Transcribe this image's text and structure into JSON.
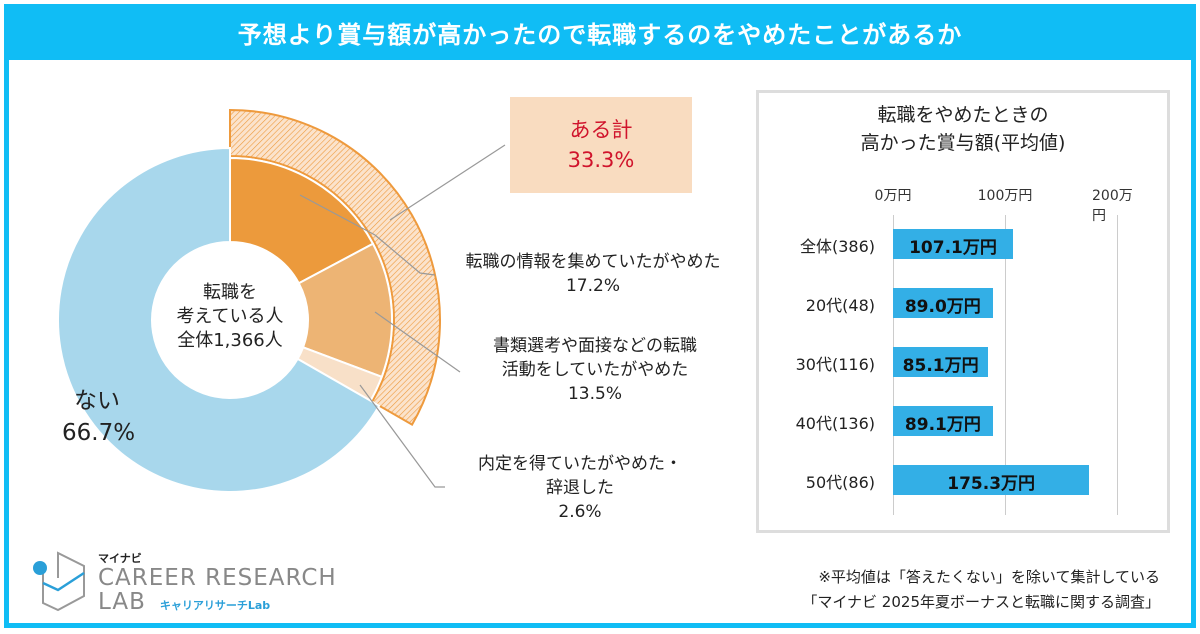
{
  "header": {
    "title": "予想より賞与額が高かったので転職するのをやめたことがあるか"
  },
  "colors": {
    "accent": "#10bdf5",
    "no": "#a8d7ec",
    "slice1": "#ec9a3c",
    "slice2": "#edb474",
    "slice3": "#f8e0c8",
    "hatch": "#ee9a3d",
    "bar": "#33afe6",
    "callout_text": "#d0142c",
    "callout_bg": "#f9dcc0"
  },
  "chart_data": [
    {
      "type": "pie",
      "center_label": [
        "転職を",
        "考えている人",
        "全体1,366人"
      ],
      "slices": [
        {
          "label": "転職の情報を集めていたがやめた",
          "value": 17.2,
          "display": "17.2%"
        },
        {
          "label": "書類選考や面接などの転職活動をしていたがやめた",
          "label_lines": [
            "書類選考や面接などの転職",
            "活動をしていたがやめた"
          ],
          "value": 13.5,
          "display": "13.5%"
        },
        {
          "label": "内定を得ていたがやめた・辞退した",
          "label_lines": [
            "内定を得ていたがやめた・",
            "辞退した"
          ],
          "value": 2.6,
          "display": "2.6%"
        },
        {
          "label": "ない",
          "value": 66.7,
          "display": "66.7%"
        }
      ],
      "total_callout": {
        "label": "ある計",
        "value": 33.3,
        "display": "33.3%"
      }
    },
    {
      "type": "bar",
      "orientation": "horizontal",
      "title": [
        "転職をやめたときの",
        "高かった賞与額(平均値)"
      ],
      "categories": [
        "全体(386)",
        "20代(48)",
        "30代(116)",
        "40代(136)",
        "50代(86)"
      ],
      "values": [
        107.1,
        89.0,
        85.1,
        89.1,
        175.3
      ],
      "value_labels": [
        "107.1万円",
        "89.0万円",
        "85.1万円",
        "89.1万円",
        "175.3万円"
      ],
      "xlim": [
        0,
        200
      ],
      "ticks": [
        "0万円",
        "100万円",
        "200万円"
      ],
      "grid": true
    }
  ],
  "notes": [
    "※平均値は「答えたくない」を除いて集計している",
    "「マイナビ 2025年夏ボーナスと転職に関する調査」"
  ],
  "logo": {
    "top": "マイナビ",
    "main1": "CAREER RESEARCH",
    "main2": "LAB",
    "sub": "キャリアリサーチLab"
  }
}
